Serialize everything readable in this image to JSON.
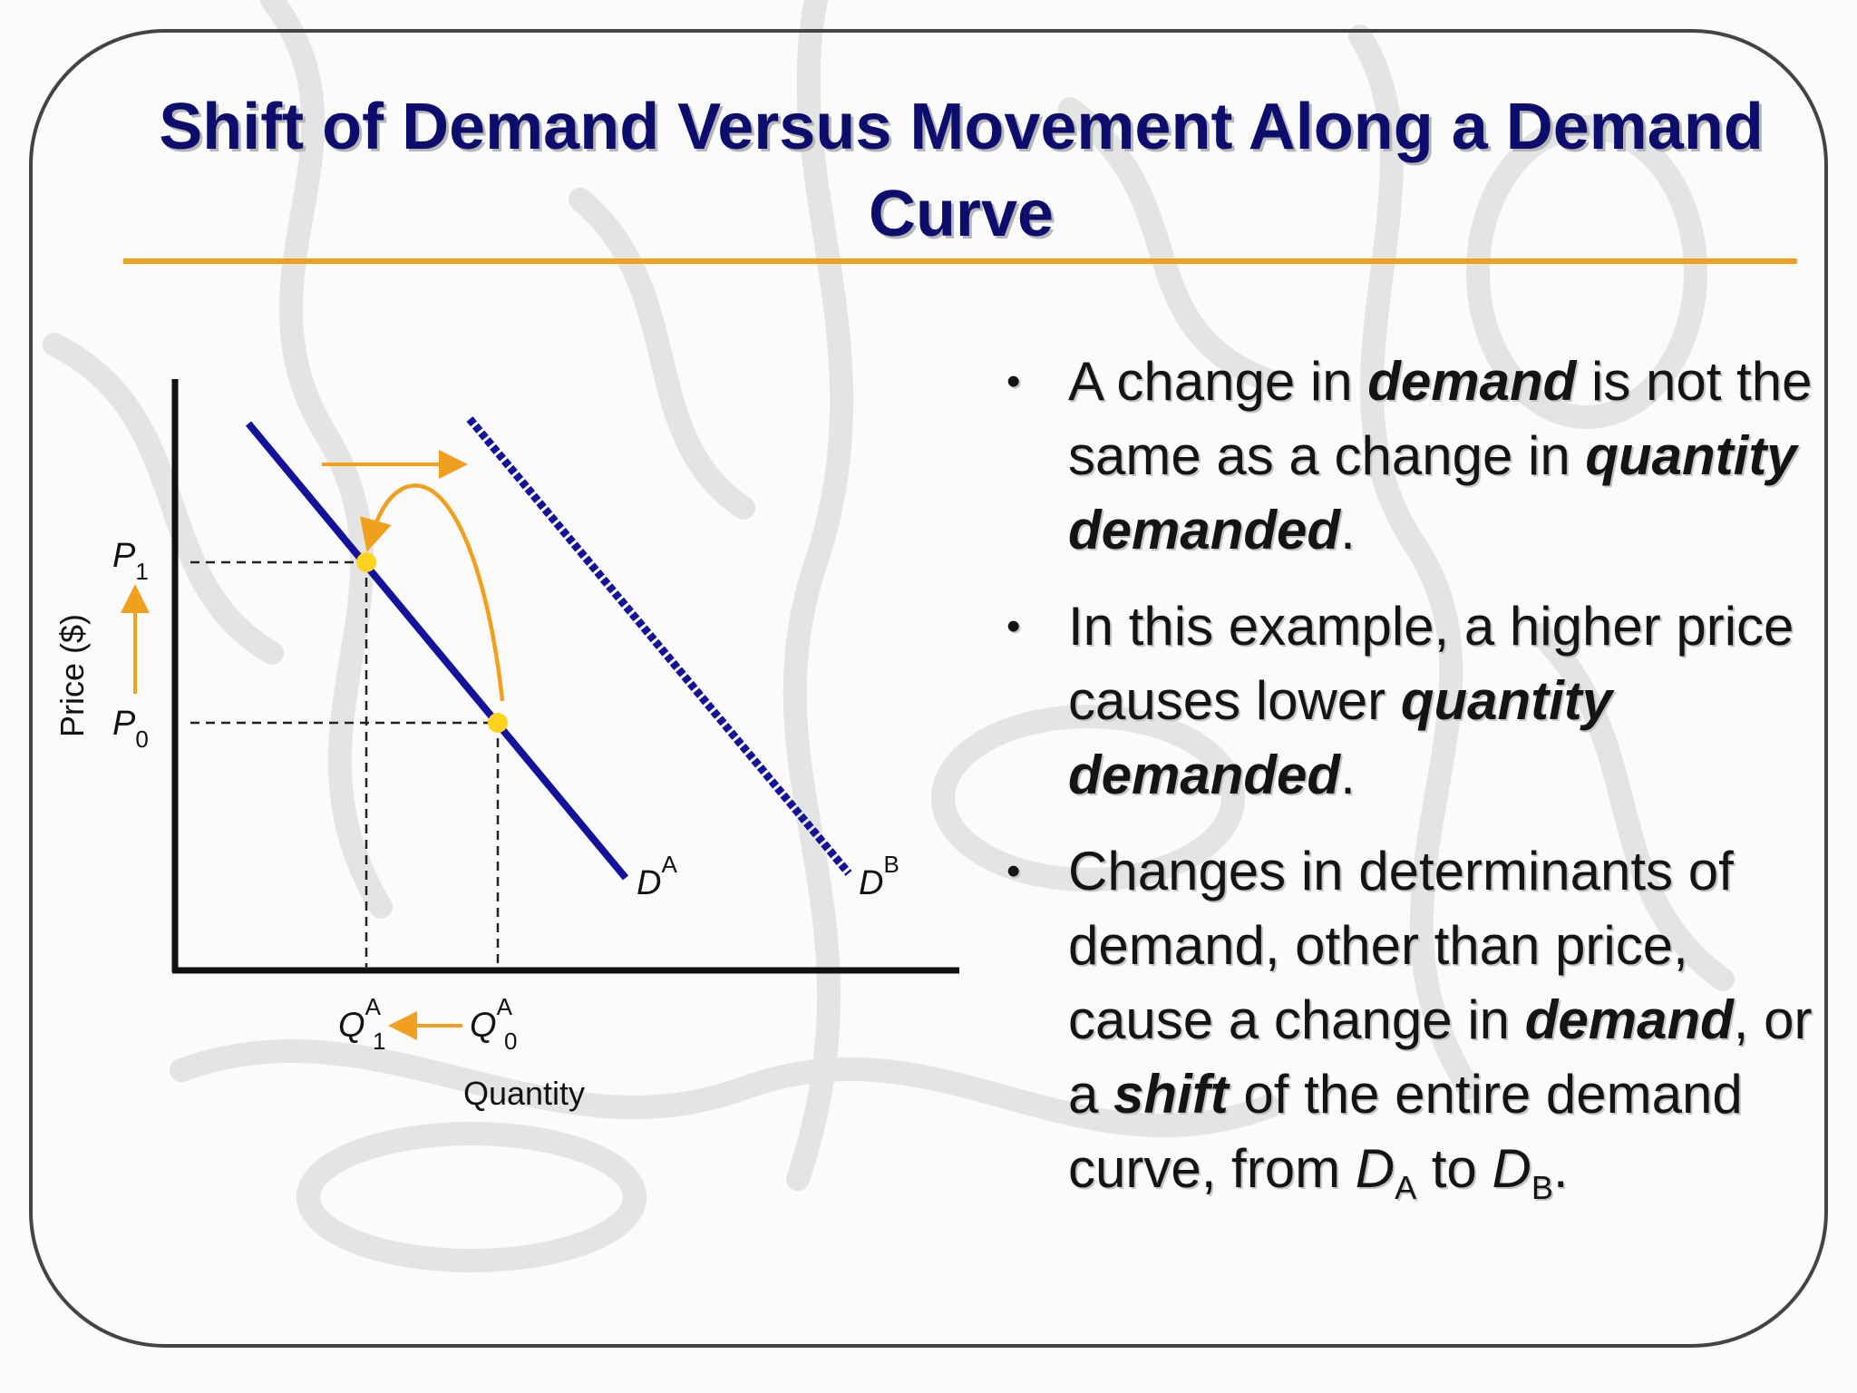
{
  "slide": {
    "title": "Shift of Demand Versus Movement Along a Demand Curve"
  },
  "diagram": {
    "y_axis_label": "Price ($)",
    "x_axis_label": "Quantity",
    "price_labels": [
      {
        "main": "P",
        "sub": "1"
      },
      {
        "main": "P",
        "sub": "0"
      }
    ],
    "quantity_labels": [
      {
        "main": "Q",
        "sub": "1",
        "sup": "A"
      },
      {
        "main": "Q",
        "sub": "0",
        "sup": "A"
      }
    ],
    "curve_labels": [
      {
        "main": "D",
        "sup": "A"
      },
      {
        "main": "D",
        "sup": "B"
      }
    ],
    "colors": {
      "curve": "#12129a",
      "arrow": "#f0a01c",
      "point": "#ffd21e",
      "axis": "#111111"
    }
  },
  "bullets": [
    {
      "parts": [
        {
          "t": "A change in ",
          "s": "normal"
        },
        {
          "t": "demand",
          "s": "bold-italic"
        },
        {
          "t": " is not the same as a change in ",
          "s": "normal"
        },
        {
          "t": "quantity demanded",
          "s": "bold-italic"
        },
        {
          "t": ".",
          "s": "normal"
        }
      ]
    },
    {
      "parts": [
        {
          "t": "In this example, a higher price causes lower ",
          "s": "normal"
        },
        {
          "t": "quantity demanded",
          "s": "bold-italic"
        },
        {
          "t": ".",
          "s": "normal"
        }
      ]
    },
    {
      "parts": [
        {
          "t": "Changes in determinants of demand, other than price, cause a change in ",
          "s": "normal"
        },
        {
          "t": "demand",
          "s": "bold-italic"
        },
        {
          "t": ", or a ",
          "s": "normal"
        },
        {
          "t": "shift",
          "s": "bold-italic"
        },
        {
          "t": " of the entire demand curve, from ",
          "s": "normal"
        },
        {
          "t": "D",
          "s": "italic"
        },
        {
          "t": "A",
          "s": "sub"
        },
        {
          "t": " to ",
          "s": "normal"
        },
        {
          "t": "D",
          "s": "italic"
        },
        {
          "t": "B",
          "s": "sub"
        },
        {
          "t": ".",
          "s": "normal"
        }
      ]
    }
  ]
}
